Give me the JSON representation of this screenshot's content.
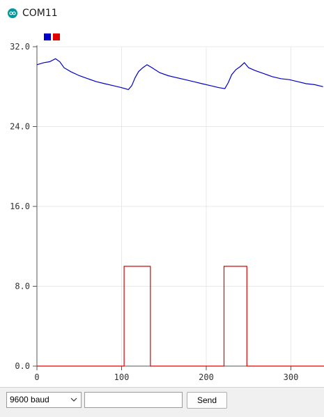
{
  "window": {
    "title": "COM11"
  },
  "icons": {
    "app": "arduino-infinity-icon",
    "dropdown": "chevron-down-icon"
  },
  "colors": {
    "series1": "#0000c8",
    "series2": "#e00000",
    "grid": "#e8e8e8",
    "accent": "#00979c"
  },
  "controls": {
    "baud_label": "9600 baud",
    "send_input_value": "",
    "send_label": "Send"
  },
  "chart_data": {
    "type": "line",
    "title": "",
    "xlabel": "",
    "ylabel": "",
    "xlim": [
      0,
      340
    ],
    "ylim": [
      0,
      32
    ],
    "grid": true,
    "legend": "top-left",
    "y_ticks": [
      "32.0",
      "24.0",
      "16.0",
      "8.0",
      "0.0"
    ],
    "x_ticks": [
      "0",
      "100",
      "200",
      "300"
    ],
    "series": [
      {
        "color": "#0000c8",
        "x": [
          0,
          8,
          15,
          22,
          27,
          32,
          40,
          50,
          60,
          70,
          80,
          90,
          100,
          108,
          112,
          116,
          120,
          125,
          130,
          136,
          145,
          155,
          165,
          175,
          185,
          195,
          205,
          215,
          222,
          226,
          230,
          235,
          240,
          245,
          250,
          258,
          268,
          278,
          288,
          298,
          308,
          318,
          328,
          338
        ],
        "y": [
          30.2,
          30.4,
          30.5,
          30.8,
          30.5,
          29.9,
          29.5,
          29.1,
          28.8,
          28.5,
          28.3,
          28.1,
          27.9,
          27.7,
          28.1,
          28.9,
          29.5,
          29.9,
          30.2,
          29.9,
          29.4,
          29.1,
          28.9,
          28.7,
          28.5,
          28.3,
          28.1,
          27.9,
          27.8,
          28.4,
          29.2,
          29.7,
          30.0,
          30.4,
          29.9,
          29.6,
          29.3,
          29.0,
          28.8,
          28.7,
          28.5,
          28.3,
          28.2,
          28.0
        ]
      },
      {
        "color": "#e00000",
        "x": [
          0,
          103,
          103,
          134,
          134,
          221,
          221,
          248,
          248,
          340
        ],
        "y": [
          0,
          0,
          10,
          10,
          0,
          0,
          10,
          10,
          0,
          0
        ]
      }
    ]
  }
}
